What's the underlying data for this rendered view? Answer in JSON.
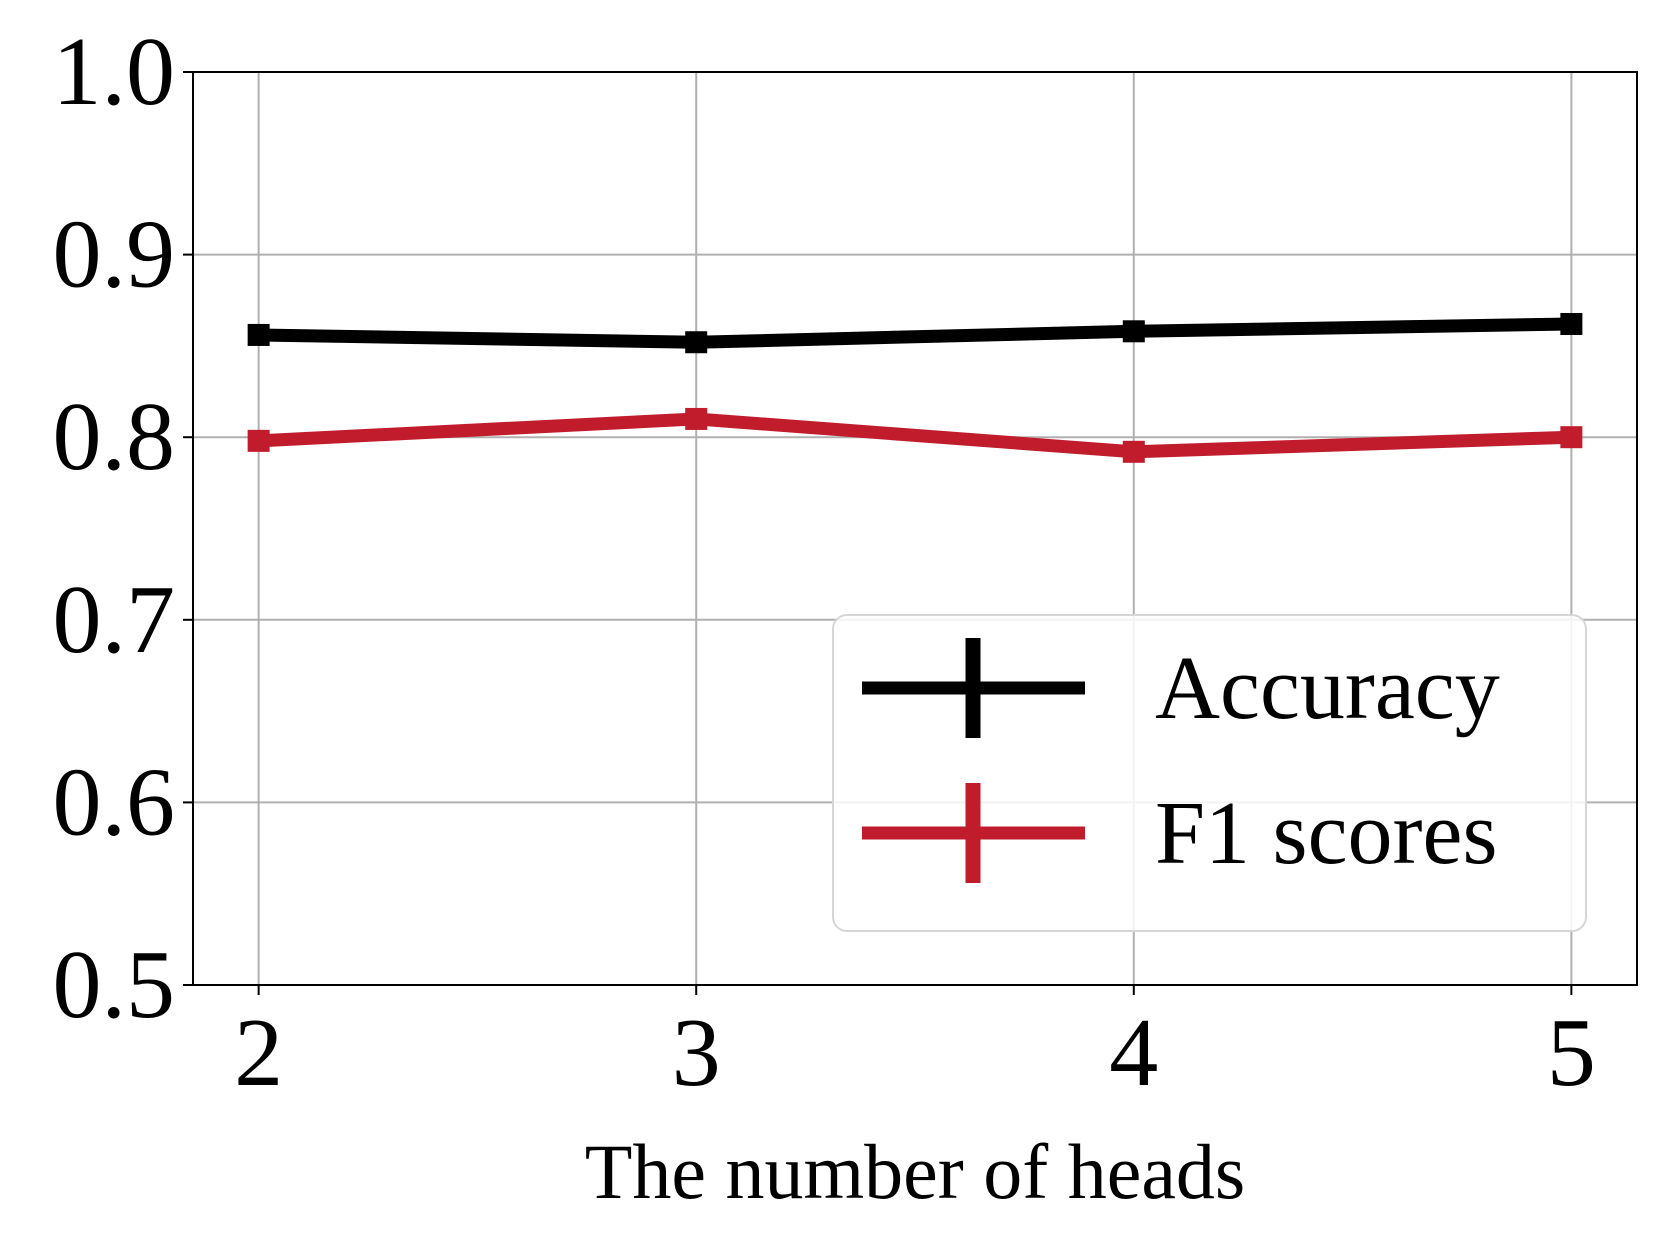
{
  "chart_data": {
    "type": "line",
    "title": "",
    "xlabel": "The number of heads",
    "ylabel": "",
    "x": [
      2,
      3,
      4,
      5
    ],
    "x_tick_labels": [
      "2",
      "3",
      "4",
      "5"
    ],
    "y_ticks": [
      0.5,
      0.6,
      0.7,
      0.8,
      0.9,
      1.0
    ],
    "y_tick_labels": [
      "0.5",
      "0.6",
      "0.7",
      "0.8",
      "0.9",
      "1.0"
    ],
    "xlim": [
      1.85,
      5.15
    ],
    "ylim": [
      0.5,
      1.0
    ],
    "grid": true,
    "legend_position": "lower-right",
    "series": [
      {
        "name": "Accuracy",
        "color": "#000000",
        "marker": "square",
        "values": [
          0.856,
          0.852,
          0.858,
          0.862
        ]
      },
      {
        "name": "F1 scores",
        "color": "#c01c2c",
        "marker": "square",
        "values": [
          0.798,
          0.81,
          0.792,
          0.8
        ]
      }
    ]
  }
}
